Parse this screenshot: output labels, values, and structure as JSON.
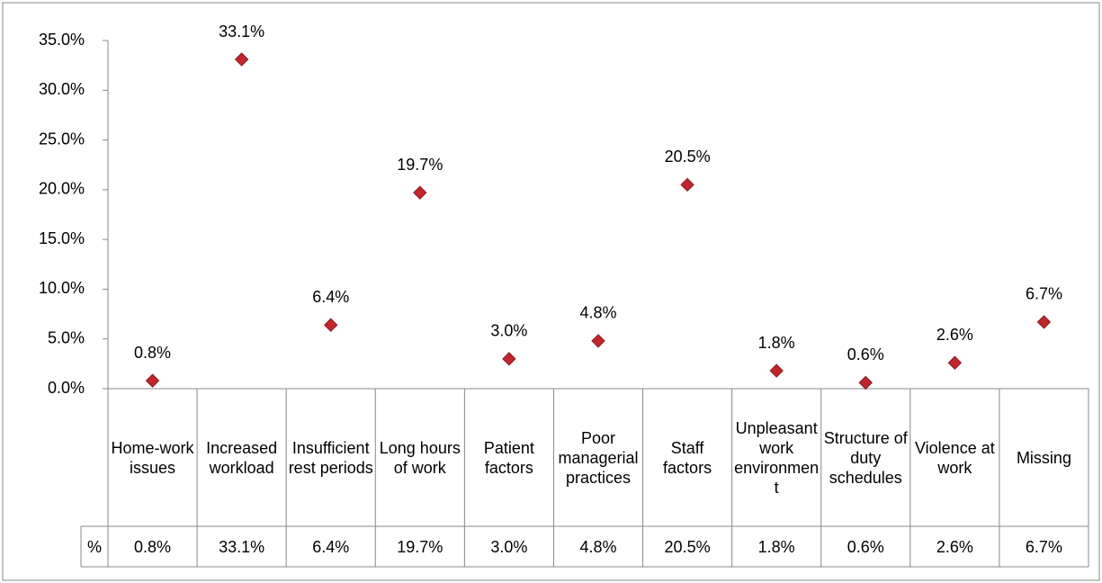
{
  "chart_data": {
    "type": "dot",
    "series_name": "%",
    "categories": [
      "Home-work issues",
      "Increased workload",
      "Insufficient rest periods",
      "Long hours of work",
      "Patient factors",
      "Poor managerial practices",
      "Staff factors",
      "Unpleasant work environment",
      "Structure of duty schedules",
      "Violence at work",
      "Missing"
    ],
    "values": [
      0.8,
      33.1,
      6.4,
      19.7,
      3.0,
      4.8,
      20.5,
      1.8,
      0.6,
      2.6,
      6.7
    ],
    "value_labels": [
      "0.8%",
      "33.1%",
      "6.4%",
      "19.7%",
      "3.0%",
      "4.8%",
      "20.5%",
      "1.8%",
      "0.6%",
      "2.6%",
      "6.7%"
    ],
    "color": "#c0272d",
    "ylim": [
      0,
      35
    ],
    "yticks": [
      {
        "value": 0,
        "label": "0.0%"
      },
      {
        "value": 5,
        "label": "5.0%"
      },
      {
        "value": 10,
        "label": "10.0%"
      },
      {
        "value": 15,
        "label": "15.0%"
      },
      {
        "value": 20,
        "label": "20.0%"
      },
      {
        "value": 25,
        "label": "25.0%"
      },
      {
        "value": 30,
        "label": "30.0%"
      },
      {
        "value": 35,
        "label": "35.0%"
      }
    ],
    "data_table": true
  }
}
